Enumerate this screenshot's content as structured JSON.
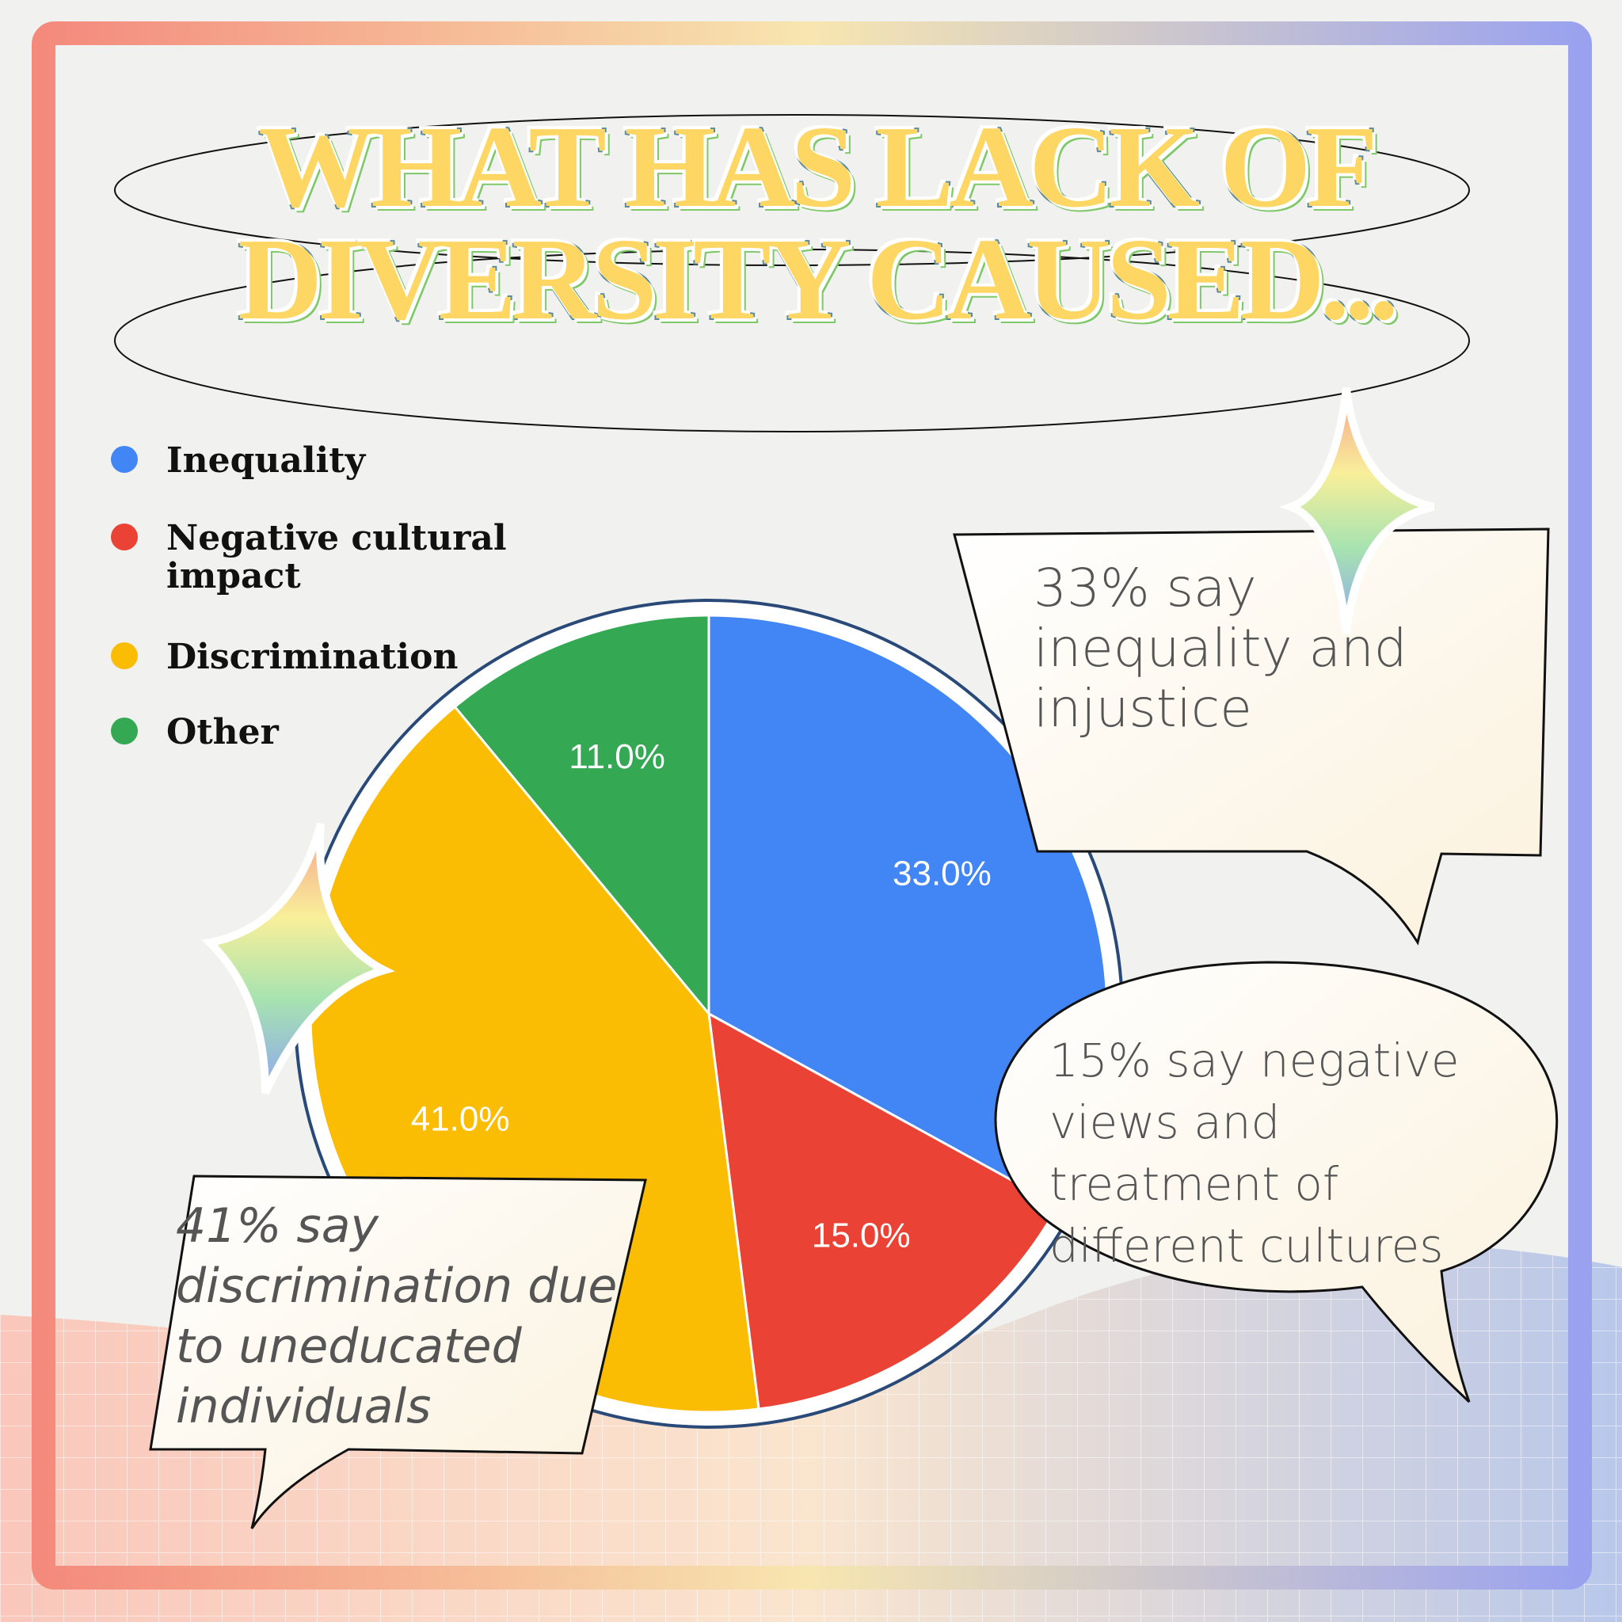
{
  "chart_data": {
    "type": "pie",
    "title": "WHAT HAS LACK OF DIVERSITY CAUSED...",
    "categories": [
      "Inequality",
      "Negative cultural impact",
      "Discrimination",
      "Other"
    ],
    "values": [
      33,
      15,
      41,
      11
    ],
    "value_labels": [
      "33.0%",
      "15.0%",
      "41.0%",
      "11.0%"
    ],
    "colors": [
      "#4285f4",
      "#ea4335",
      "#fbbc04",
      "#34a853"
    ],
    "annotations": [
      "33% say inequality and injustice",
      "15% say negative views and treatment of different cultures",
      "41% say discrimination due to uneducated individuals"
    ]
  }
}
